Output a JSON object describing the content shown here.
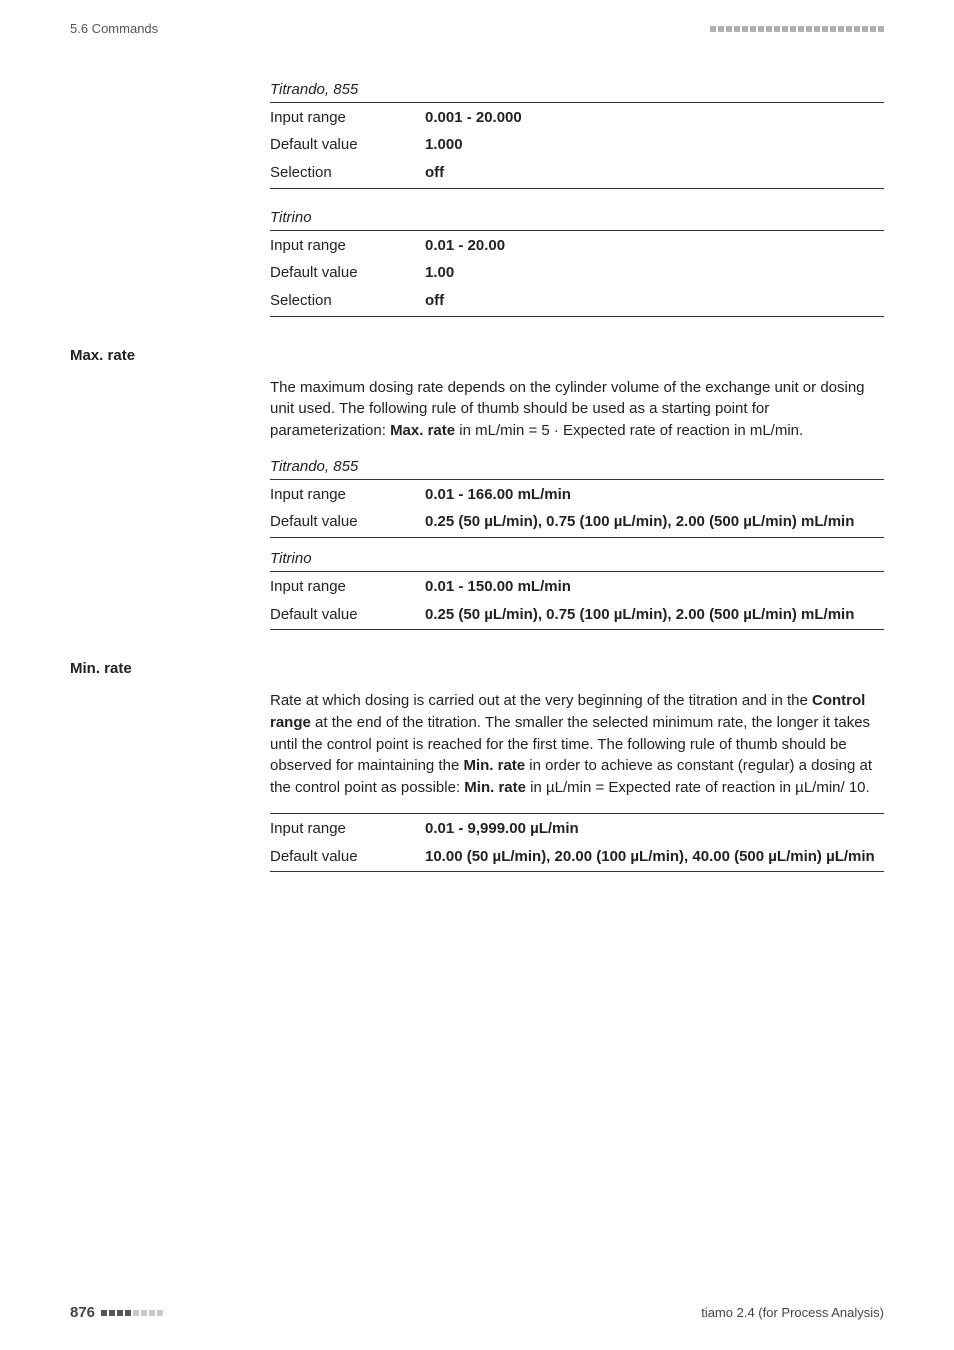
{
  "header": {
    "left": "5.6 Commands"
  },
  "block1": {
    "titrando": {
      "heading": "Titrando, 855",
      "rows": [
        {
          "label": "Input range",
          "value": "0.001 - 20.000"
        },
        {
          "label": "Default value",
          "value": "1.000"
        },
        {
          "label": "Selection",
          "value": "off"
        }
      ]
    },
    "titrino": {
      "heading": "Titrino",
      "rows": [
        {
          "label": "Input range",
          "value": "0.01 - 20.00"
        },
        {
          "label": "Default value",
          "value": "1.00"
        },
        {
          "label": "Selection",
          "value": "off"
        }
      ]
    }
  },
  "max_rate": {
    "heading": "Max. rate",
    "para_parts": {
      "p1": "The maximum dosing rate depends on the cylinder volume of the exchange unit or dosing unit used. The following rule of thumb should be used as a starting point for parameterization: ",
      "bold1": "Max. rate",
      "p2": " in mL/min = 5 · Expected rate of reaction in mL/min."
    },
    "titrando": {
      "heading": "Titrando, 855",
      "rows": [
        {
          "label": "Input range",
          "value": "0.01 - 166.00 mL/min"
        },
        {
          "label": "Default value",
          "value": "0.25 (50 µL/min), 0.75 (100 µL/min), 2.00 (500 µL/min) mL/min"
        }
      ]
    },
    "titrino": {
      "heading": "Titrino",
      "rows": [
        {
          "label": "Input range",
          "value": "0.01 - 150.00 mL/min"
        },
        {
          "label": "Default value",
          "value": "0.25 (50 µL/min), 0.75 (100 µL/min), 2.00 (500 µL/min) mL/min"
        }
      ]
    }
  },
  "min_rate": {
    "heading": "Min. rate",
    "para_parts": {
      "p1": "Rate at which dosing is carried out at the very beginning of the titration and in the ",
      "bold1": "Control range",
      "p2": " at the end of the titration. The smaller the selected minimum rate, the longer it takes until the control point is reached for the first time. The following rule of thumb should be observed for maintaining the ",
      "bold2": "Min. rate",
      "p3": " in order to achieve as constant (regular) a dosing at the control point as possible: ",
      "bold3": "Min. rate",
      "p4": " in µL/min = Expected rate of reaction in µL/min/ 10."
    },
    "table": {
      "rows": [
        {
          "label": "Input range",
          "value": "0.01 - 9,999.00 µL/min"
        },
        {
          "label": "Default value",
          "value": "10.00 (50 µL/min), 20.00 (100 µL/min), 40.00 (500 µL/min) µL/min"
        }
      ]
    }
  },
  "footer": {
    "page": "876",
    "right": "tiamo 2.4 (for Process Analysis)"
  }
}
